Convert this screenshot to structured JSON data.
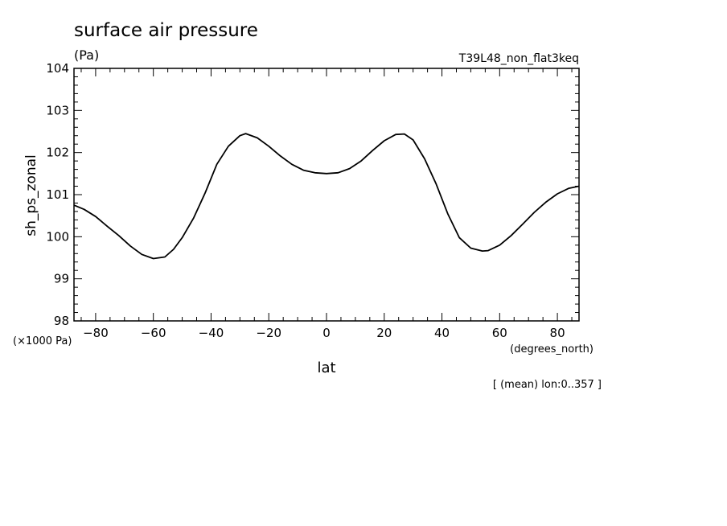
{
  "chart_data": {
    "type": "line",
    "title": "surface air pressure",
    "unit_label": "(Pa)",
    "experiment": "T39L48_non_flat3keq",
    "ylabel": "sh_ps_zonal",
    "xlabel": "lat",
    "y_scale_note": "(×1000 Pa)",
    "x_unit_note": "(degrees_north)",
    "footnote": "[ (mean) lon:0..357 ]",
    "xlim": [
      -87.5,
      87.5
    ],
    "ylim": [
      98,
      104
    ],
    "x_ticks": [
      -80,
      -60,
      -40,
      -20,
      0,
      20,
      40,
      60,
      80
    ],
    "x_tick_labels": [
      "−80",
      "−60",
      "−40",
      "−20",
      "0",
      "20",
      "40",
      "60",
      "80"
    ],
    "y_ticks": [
      98,
      99,
      100,
      101,
      102,
      103,
      104
    ],
    "y_tick_labels": [
      "98",
      "99",
      "100",
      "101",
      "102",
      "103",
      "104"
    ],
    "series": [
      {
        "x": [
          -87.5,
          -84,
          -80,
          -76,
          -72,
          -68,
          -64,
          -60,
          -56,
          -53,
          -50,
          -46,
          -42,
          -38,
          -34,
          -30,
          -28,
          -24,
          -20,
          -16,
          -12,
          -8,
          -4,
          0,
          4,
          8,
          12,
          16,
          20,
          24,
          27,
          30,
          34,
          38,
          42,
          46,
          50,
          54,
          56,
          60,
          64,
          68,
          72,
          76,
          80,
          84,
          87.5
        ],
        "y": [
          100.75,
          100.65,
          100.48,
          100.25,
          100.03,
          99.78,
          99.58,
          99.48,
          99.52,
          99.7,
          99.98,
          100.45,
          101.05,
          101.72,
          102.15,
          102.4,
          102.45,
          102.35,
          102.15,
          101.92,
          101.72,
          101.58,
          101.52,
          101.5,
          101.52,
          101.62,
          101.8,
          102.05,
          102.28,
          102.43,
          102.44,
          102.3,
          101.85,
          101.25,
          100.55,
          99.98,
          99.73,
          99.66,
          99.67,
          99.8,
          100.03,
          100.3,
          100.58,
          100.82,
          101.02,
          101.15,
          101.2
        ]
      }
    ]
  }
}
